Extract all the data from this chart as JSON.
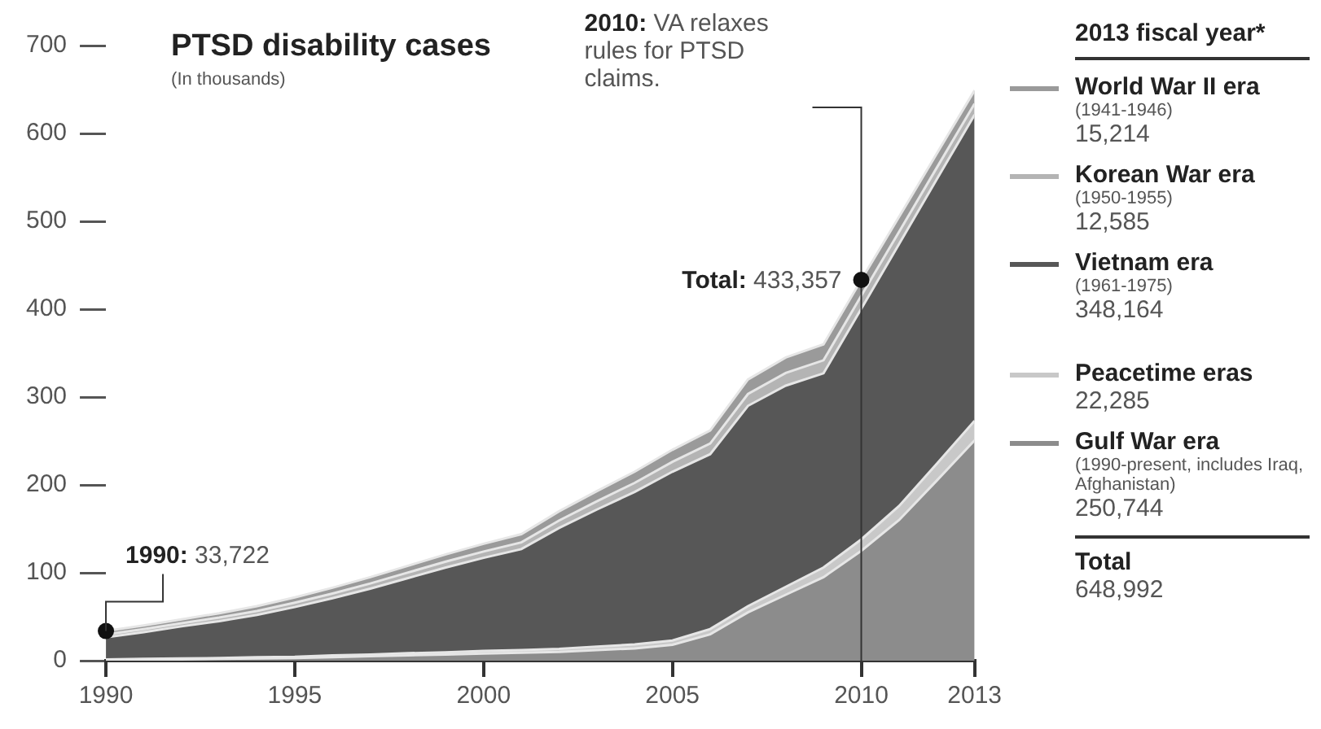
{
  "chart_data": {
    "type": "area",
    "title": "PTSD disability cases",
    "subtitle": "(In thousands)",
    "legend_title": "2013 fiscal year*",
    "legend": "right",
    "stacked": true,
    "grid": false,
    "x": [
      1990,
      1991,
      1992,
      1993,
      1994,
      1995,
      1996,
      1997,
      1998,
      1999,
      2000,
      2001,
      2002,
      2003,
      2004,
      2005,
      2006,
      2007,
      2008,
      2009,
      2010,
      2011,
      2012,
      2013
    ],
    "xlim": [
      1990,
      2013
    ],
    "xticks": [
      1990,
      1995,
      2000,
      2005,
      2010,
      2013
    ],
    "ylim": [
      0,
      700
    ],
    "yticks": [
      0,
      100,
      200,
      300,
      400,
      500,
      600,
      700
    ],
    "series": [
      {
        "name": "Gulf War era\n(1990-present, includes Iraq, Afghanistan)",
        "color": "#8c8c8c",
        "values": [
          0.5,
          1,
          1.5,
          2,
          2.5,
          3,
          4,
          5,
          6,
          7,
          8,
          9,
          10,
          12,
          14,
          18,
          30,
          55,
          75,
          95,
          125,
          160,
          205,
          250.744
        ]
      },
      {
        "name": "Peacetime eras",
        "color": "#c8c8c8",
        "values": [
          1,
          1,
          1,
          1,
          1.5,
          1.5,
          2,
          2,
          2.5,
          2.5,
          3,
          3,
          3.5,
          4,
          4.5,
          5,
          6,
          7,
          9,
          11,
          13,
          16,
          19,
          22.285
        ]
      },
      {
        "name": "Vietnam era\n(1961-1975)",
        "color": "#575757",
        "values": [
          25.2,
          30.5,
          36.5,
          42,
          48,
          56.5,
          65,
          75,
          85.5,
          96.5,
          106,
          115,
          137.5,
          156,
          173.5,
          192,
          199,
          228,
          229,
          221,
          262.4,
          298,
          324,
          348.164
        ]
      },
      {
        "name": "Korean War era\n(1950-1955)",
        "color": "#b4b4b4",
        "values": [
          3.1,
          3.4,
          3.6,
          4,
          4.5,
          5,
          5.4,
          5.8,
          6.3,
          6.7,
          7.2,
          7.6,
          8.5,
          9.4,
          10.3,
          11.2,
          12.1,
          13.5,
          14.4,
          14.8,
          14.8,
          13.9,
          13,
          12.585
        ]
      },
      {
        "name": "World War II era\n(1941-1946)",
        "color": "#9a9a9a",
        "values": [
          3.9,
          4.1,
          4.4,
          5,
          5.5,
          6,
          6.6,
          7.2,
          7.7,
          8.3,
          8.8,
          9.4,
          10.5,
          11.6,
          12.7,
          13.8,
          14.9,
          16.5,
          17.6,
          18.2,
          18.2,
          17.1,
          16,
          15.214
        ]
      }
    ],
    "ref_lines": [
      {
        "axis": "x",
        "value": 2010,
        "label": "2010: VA relaxes rules for PTSD claims.",
        "color": "#333333"
      }
    ],
    "annotations": [
      {
        "text": "1990: 33,722",
        "x": 1990,
        "y": 33.722
      },
      {
        "text": "Total: 433,357",
        "x": 2010,
        "y": 433.357
      },
      "15,214",
      "12,585",
      "348,164",
      "22,285",
      "250,744",
      "Total",
      "648,992"
    ]
  }
}
